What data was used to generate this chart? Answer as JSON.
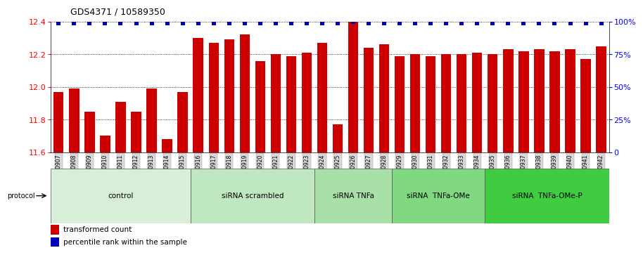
{
  "title": "GDS4371 / 10589350",
  "samples": [
    "GSM790907",
    "GSM790908",
    "GSM790909",
    "GSM790910",
    "GSM790911",
    "GSM790912",
    "GSM790913",
    "GSM790914",
    "GSM790915",
    "GSM790916",
    "GSM790917",
    "GSM790918",
    "GSM790919",
    "GSM790920",
    "GSM790921",
    "GSM790922",
    "GSM790923",
    "GSM790924",
    "GSM790925",
    "GSM790926",
    "GSM790927",
    "GSM790928",
    "GSM790929",
    "GSM790930",
    "GSM790931",
    "GSM790932",
    "GSM790933",
    "GSM790934",
    "GSM790935",
    "GSM790936",
    "GSM790937",
    "GSM790938",
    "GSM790939",
    "GSM790940",
    "GSM790941",
    "GSM790942"
  ],
  "bar_values": [
    11.97,
    11.99,
    11.85,
    11.7,
    11.91,
    11.85,
    11.99,
    11.68,
    11.97,
    12.3,
    12.27,
    12.29,
    12.32,
    12.16,
    12.2,
    12.19,
    12.21,
    12.27,
    11.77,
    12.43,
    12.24,
    12.26,
    12.19,
    12.2,
    12.19,
    12.2,
    12.2,
    12.21,
    12.2,
    12.23,
    12.22,
    12.23,
    12.22,
    12.23,
    12.17,
    12.25
  ],
  "percentile_values": [
    99,
    99,
    99,
    99,
    99,
    99,
    99,
    99,
    99,
    99,
    99,
    99,
    99,
    99,
    99,
    99,
    99,
    99,
    99,
    100,
    99,
    99,
    99,
    99,
    99,
    99,
    99,
    99,
    99,
    99,
    99,
    99,
    99,
    99,
    99,
    99
  ],
  "groups": [
    {
      "label": "control",
      "start": 0,
      "end": 8,
      "color": "#d8eed8"
    },
    {
      "label": "siRNA scrambled",
      "start": 9,
      "end": 16,
      "color": "#c0e8c0"
    },
    {
      "label": "siRNA TNFa",
      "start": 17,
      "end": 21,
      "color": "#a8e0a8"
    },
    {
      "label": "siRNA  TNFa-OMe",
      "start": 22,
      "end": 27,
      "color": "#80d880"
    },
    {
      "label": "siRNA  TNFa-OMe-P",
      "start": 28,
      "end": 35,
      "color": "#40cc40"
    }
  ],
  "bar_color": "#cc0000",
  "dot_color": "#0000bb",
  "ylim_left": [
    11.6,
    12.4
  ],
  "ylim_right": [
    0,
    100
  ],
  "yticks_left": [
    11.6,
    11.8,
    12.0,
    12.2,
    12.4
  ],
  "yticks_right": [
    0,
    25,
    50,
    75,
    100
  ],
  "grid_values": [
    11.8,
    12.0,
    12.2,
    12.4
  ],
  "background_color": "#ffffff"
}
